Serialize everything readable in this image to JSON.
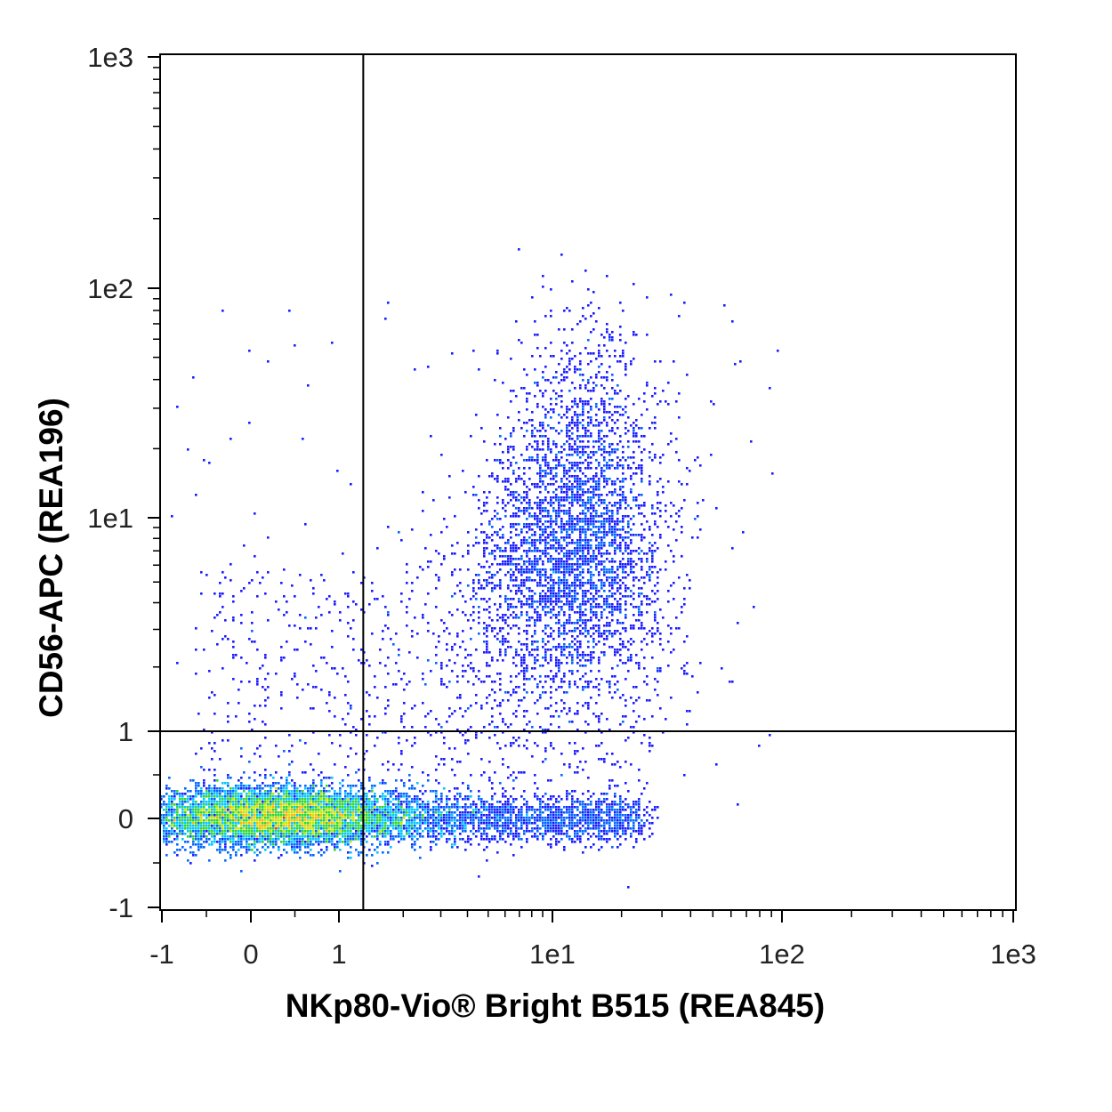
{
  "chart_data": {
    "type": "scatter",
    "subtype": "flow-cytometry density dot plot",
    "xlabel": "NKp80-Vio® Bright B515 (REA845)",
    "ylabel": "CD56-APC (REA196)",
    "x_scale": "biexponential",
    "y_scale": "biexponential",
    "xlim": [
      -1,
      1000
    ],
    "ylim": [
      -1,
      1000
    ],
    "x_ticks": [
      {
        "value": -1,
        "label": "-1"
      },
      {
        "value": 0,
        "label": "0"
      },
      {
        "value": 1,
        "label": "1"
      },
      {
        "value": 10,
        "label": "1e1"
      },
      {
        "value": 100,
        "label": "1e2"
      },
      {
        "value": 1000,
        "label": "1e3"
      }
    ],
    "y_ticks": [
      {
        "value": -1,
        "label": "-1"
      },
      {
        "value": 0,
        "label": "0"
      },
      {
        "value": 1,
        "label": "1"
      },
      {
        "value": 10,
        "label": "1e1"
      },
      {
        "value": 100,
        "label": "1e2"
      },
      {
        "value": 1000,
        "label": "1e3"
      }
    ],
    "quadrant_gates": {
      "x": 1.3,
      "y": 1
    },
    "populations": [
      {
        "name": "",
        "x_center": 0.6,
        "y_center": 0.0,
        "density": "high",
        "extent_x": [
          -1,
          2.5
        ],
        "extent_y": [
          -0.45,
          0.5
        ]
      },
      {
        "name": "",
        "x_center": 12,
        "y_center": 5,
        "density": "medium",
        "extent_x": [
          4,
          35
        ],
        "extent_y": [
          1,
          80
        ]
      },
      {
        "name": "",
        "x_center": 5,
        "y_center": 0.0,
        "density": "low",
        "extent_x": [
          2,
          25
        ],
        "extent_y": [
          -0.4,
          0.6
        ]
      }
    ],
    "colormap": [
      "#1a1aff",
      "#0066ff",
      "#00c8ff",
      "#2fd42f",
      "#c8e600",
      "#ffb000",
      "#ff3000"
    ],
    "grid": false,
    "legend": "none"
  }
}
